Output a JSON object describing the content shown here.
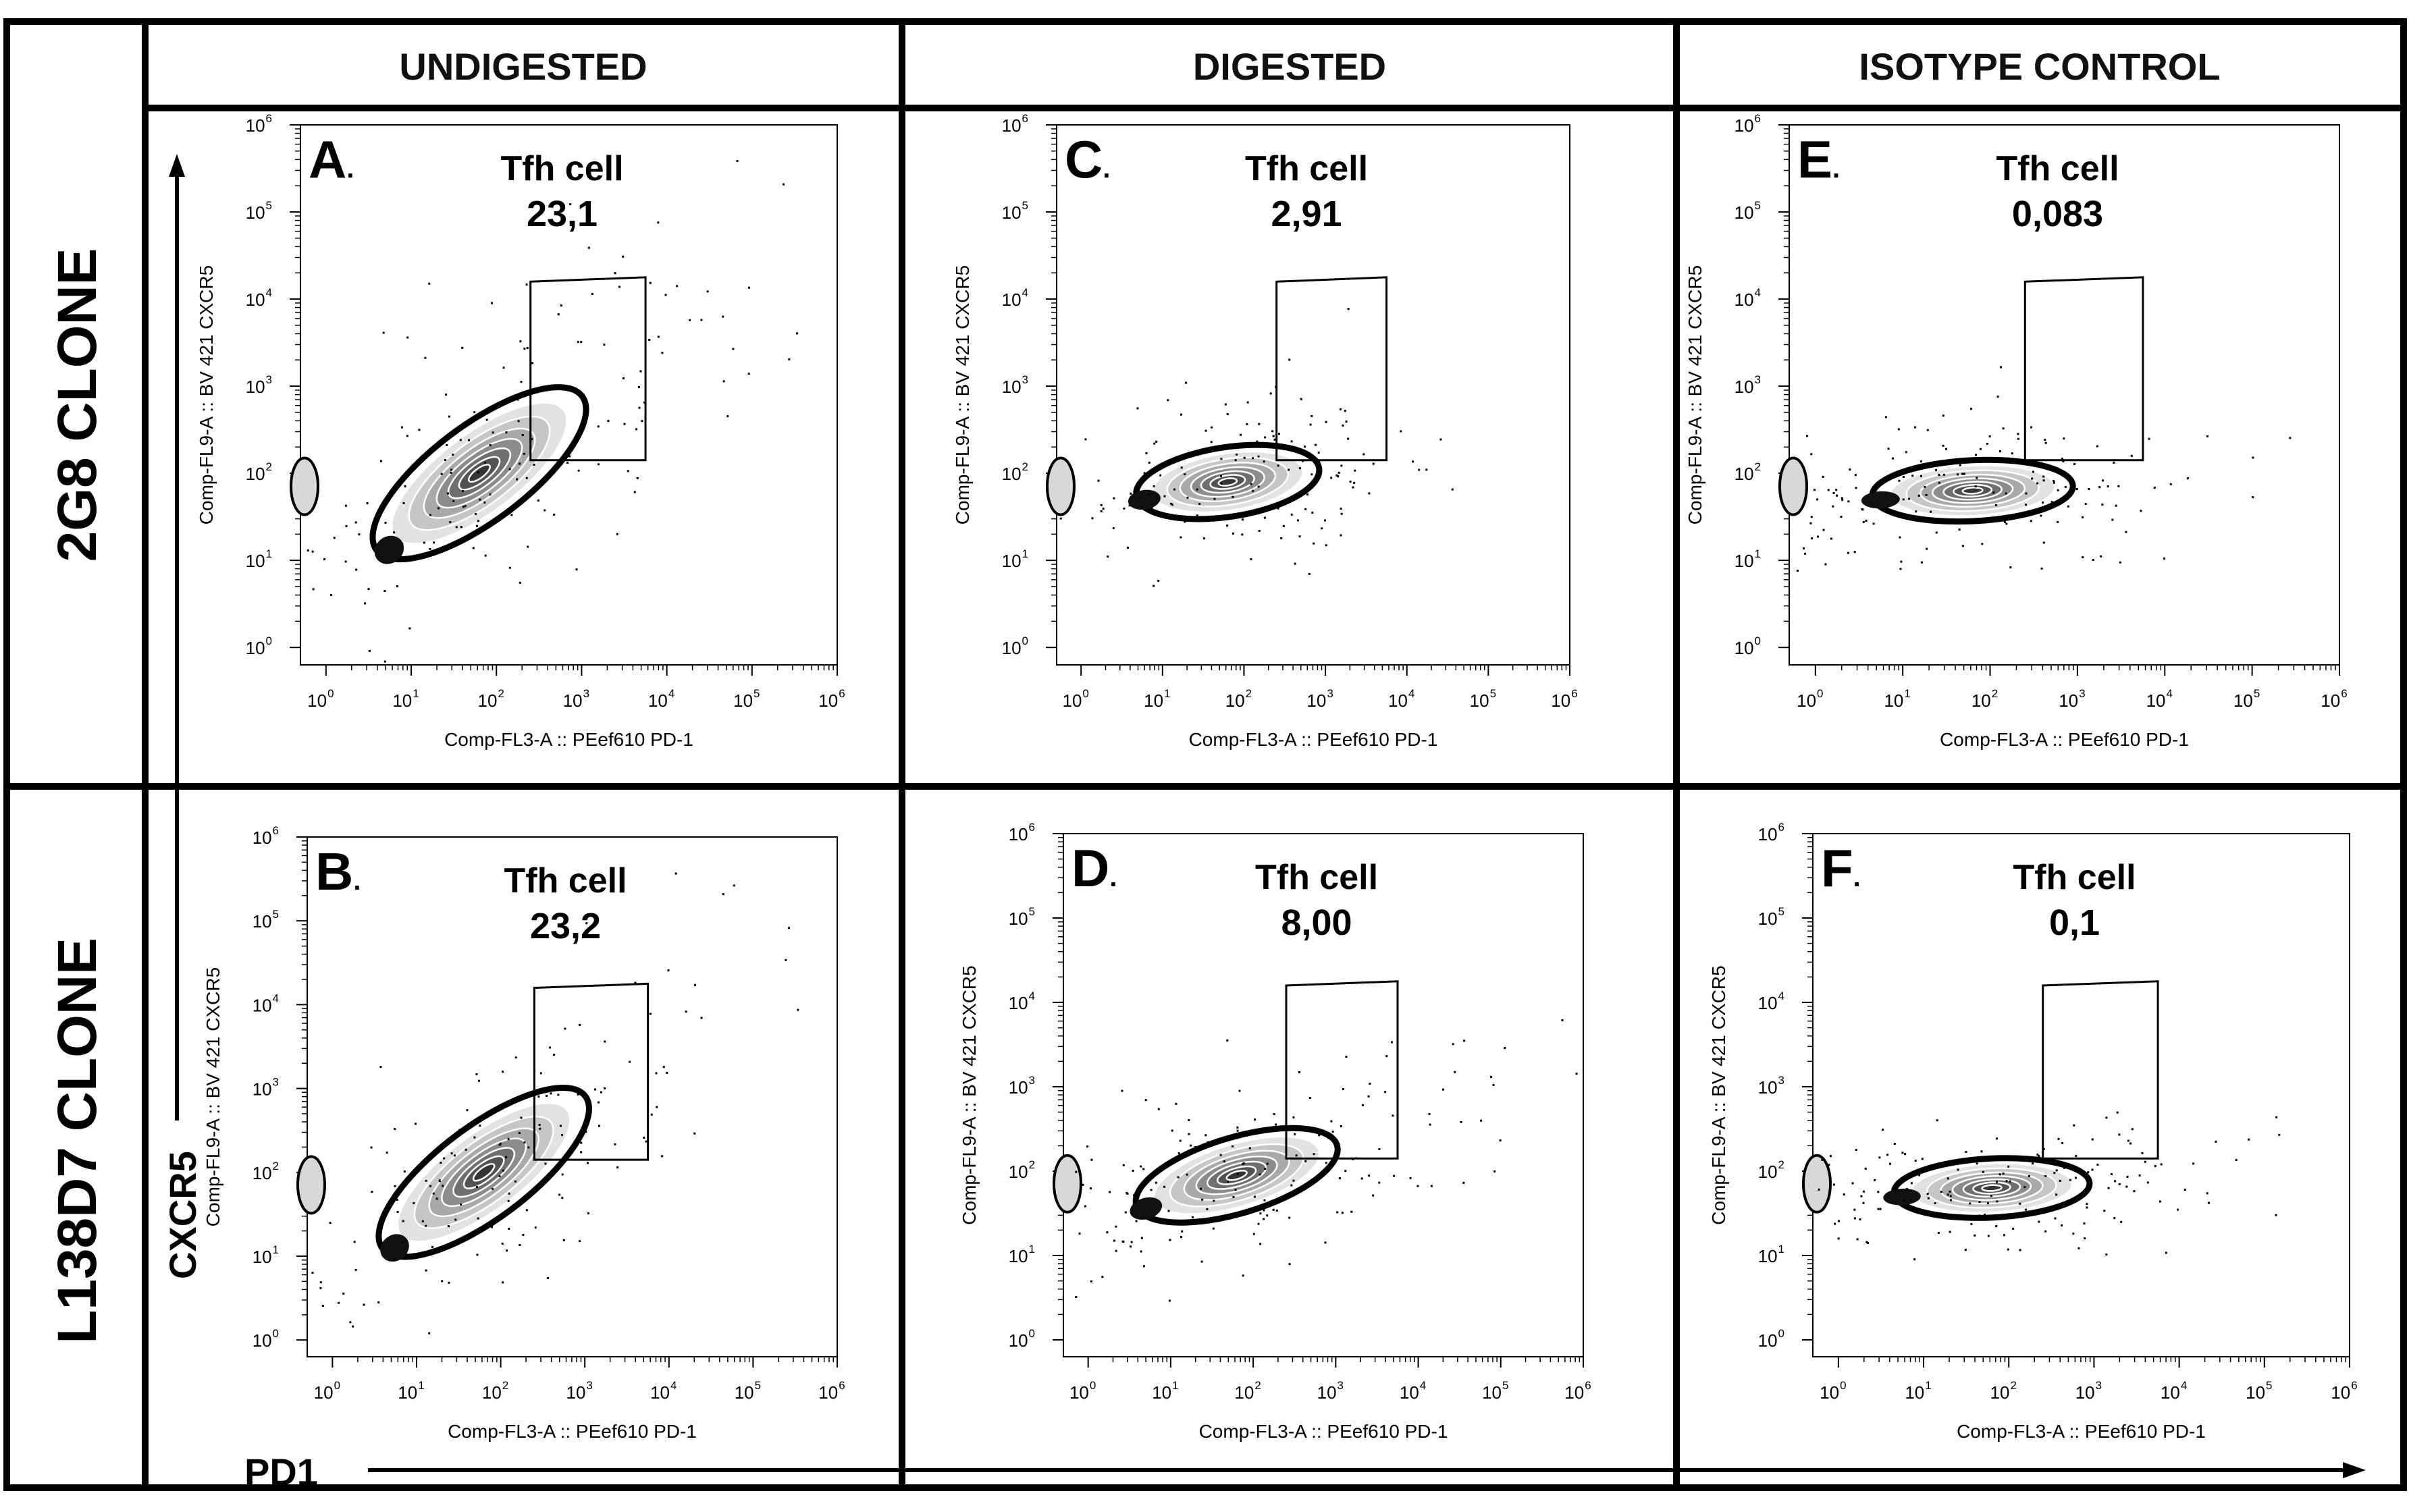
{
  "columns": [
    "UNDIGESTED",
    "DIGESTED",
    "ISOTYPE CONTROL"
  ],
  "rows": [
    "2G8 CLONE",
    "L138D7 CLONE"
  ],
  "axis_titles": {
    "y": "CXCR5",
    "x": "PD1"
  },
  "colors": {
    "ink": "#000000",
    "background": "#ffffff"
  },
  "chart_data": [
    {
      "type": "scatter",
      "panel": "A",
      "column": "UNDIGESTED",
      "row": "2G8 CLONE",
      "xlabel": "Comp-FL3-A :: PEef610 PD-1",
      "ylabel": "Comp-FL9-A :: BV 421 CXCR5",
      "x_ticks": [
        "10^0",
        "10^1",
        "10^2",
        "10^3",
        "10^4",
        "10^5",
        "10^6"
      ],
      "y_ticks": [
        "10^0",
        "10^1",
        "10^2",
        "10^3",
        "10^4",
        "10^5",
        "10^6"
      ],
      "xlim_log10": [
        -0.3,
        6
      ],
      "ylim_log10": [
        -0.2,
        6
      ],
      "gate_name": "Tfh cell",
      "gate_value": "23,1",
      "gate_percent": 23.1,
      "population": {
        "center_log10": [
          1.8,
          2.0
        ],
        "spread_log10": [
          0.9,
          0.55
        ],
        "tilt": 0.75
      }
    },
    {
      "type": "scatter",
      "panel": "C",
      "column": "DIGESTED",
      "row": "2G8 CLONE",
      "xlabel": "Comp-FL3-A :: PEef610 PD-1",
      "ylabel": "Comp-FL9-A :: BV 421 CXCR5",
      "x_ticks": [
        "10^0",
        "10^1",
        "10^2",
        "10^3",
        "10^4",
        "10^5",
        "10^6"
      ],
      "y_ticks": [
        "10^0",
        "10^1",
        "10^2",
        "10^3",
        "10^4",
        "10^5",
        "10^6"
      ],
      "xlim_log10": [
        -0.3,
        6
      ],
      "ylim_log10": [
        -0.2,
        6
      ],
      "gate_name": "Tfh cell",
      "gate_value": "2,91",
      "gate_percent": 2.91,
      "population": {
        "center_log10": [
          1.8,
          1.9
        ],
        "spread_log10": [
          1.0,
          0.4
        ],
        "tilt": 0.15
      }
    },
    {
      "type": "scatter",
      "panel": "E",
      "column": "ISOTYPE CONTROL",
      "row": "2G8 CLONE",
      "xlabel": "Comp-FL3-A :: PEef610 PD-1",
      "ylabel": "Comp-FL9-A :: BV 421 CXCR5",
      "x_ticks": [
        "10^0",
        "10^1",
        "10^2",
        "10^3",
        "10^4",
        "10^5",
        "10^6"
      ],
      "y_ticks": [
        "10^0",
        "10^1",
        "10^2",
        "10^3",
        "10^4",
        "10^5",
        "10^6"
      ],
      "xlim_log10": [
        -0.3,
        6
      ],
      "ylim_log10": [
        -0.2,
        6
      ],
      "gate_name": "Tfh cell",
      "gate_value": "0,083",
      "gate_percent": 0.083,
      "population": {
        "center_log10": [
          1.8,
          1.8
        ],
        "spread_log10": [
          1.1,
          0.35
        ],
        "tilt": 0.05
      }
    },
    {
      "type": "scatter",
      "panel": "B",
      "column": "UNDIGESTED",
      "row": "L138D7 CLONE",
      "xlabel": "Comp-FL3-A :: PEef610 PD-1",
      "ylabel": "Comp-FL9-A :: BV 421 CXCR5",
      "x_ticks": [
        "10^0",
        "10^1",
        "10^2",
        "10^3",
        "10^4",
        "10^5",
        "10^6"
      ],
      "y_ticks": [
        "10^0",
        "10^1",
        "10^2",
        "10^3",
        "10^4",
        "10^5",
        "10^6"
      ],
      "xlim_log10": [
        -0.3,
        6
      ],
      "ylim_log10": [
        -0.2,
        6
      ],
      "gate_name": "Tfh cell",
      "gate_value": "23,2",
      "gate_percent": 23.2,
      "population": {
        "center_log10": [
          1.8,
          2.0
        ],
        "spread_log10": [
          0.9,
          0.55
        ],
        "tilt": 0.75
      }
    },
    {
      "type": "scatter",
      "panel": "D",
      "column": "DIGESTED",
      "row": "L138D7 CLONE",
      "xlabel": "Comp-FL3-A :: PEef610 PD-1",
      "ylabel": "Comp-FL9-A :: BV 421 CXCR5",
      "x_ticks": [
        "10^0",
        "10^1",
        "10^2",
        "10^3",
        "10^4",
        "10^5",
        "10^6"
      ],
      "y_ticks": [
        "10^0",
        "10^1",
        "10^2",
        "10^3",
        "10^4",
        "10^5",
        "10^6"
      ],
      "xlim_log10": [
        -0.3,
        6
      ],
      "ylim_log10": [
        -0.2,
        6
      ],
      "gate_name": "Tfh cell",
      "gate_value": "8,00",
      "gate_percent": 8.0,
      "population": {
        "center_log10": [
          1.8,
          1.95
        ],
        "spread_log10": [
          1.0,
          0.45
        ],
        "tilt": 0.3
      }
    },
    {
      "type": "scatter",
      "panel": "F",
      "column": "ISOTYPE CONTROL",
      "row": "L138D7 CLONE",
      "xlabel": "Comp-FL3-A :: PEef610 PD-1",
      "ylabel": "Comp-FL9-A :: BV 421 CXCR5",
      "x_ticks": [
        "10^0",
        "10^1",
        "10^2",
        "10^3",
        "10^4",
        "10^5",
        "10^6"
      ],
      "y_ticks": [
        "10^0",
        "10^1",
        "10^2",
        "10^3",
        "10^4",
        "10^5",
        "10^6"
      ],
      "xlim_log10": [
        -0.3,
        6
      ],
      "ylim_log10": [
        -0.2,
        6
      ],
      "gate_name": "Tfh cell",
      "gate_value": "0,1",
      "gate_percent": 0.1,
      "population": {
        "center_log10": [
          1.8,
          1.8
        ],
        "spread_log10": [
          1.1,
          0.35
        ],
        "tilt": 0.05
      }
    }
  ]
}
